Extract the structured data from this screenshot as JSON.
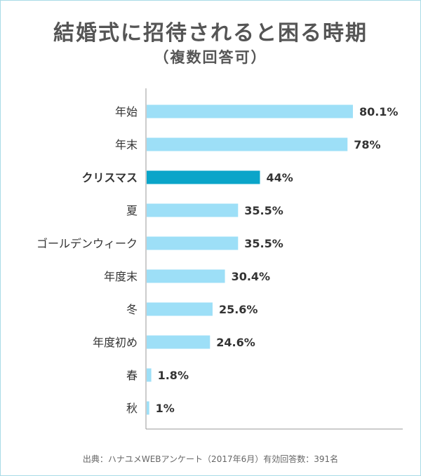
{
  "title": "結婚式に招待されると困る時期",
  "subtitle": "（複数回答可）",
  "footer": "出典：ハナユメWEBアンケート（2017年6月）有効回答数：391名",
  "colors": {
    "bar": "#9ddff7",
    "highlight": "#0aa5c9",
    "axis": "#999999",
    "text": "#333333",
    "border": "#a9dbe6"
  },
  "chart_data": {
    "type": "bar",
    "orientation": "horizontal",
    "categories": [
      "年始",
      "年末",
      "クリスマス",
      "夏",
      "ゴールデンウィーク",
      "年度末",
      "冬",
      "年度初め",
      "春",
      "秋"
    ],
    "values": [
      80.1,
      78,
      44,
      35.5,
      35.5,
      30.4,
      25.6,
      24.6,
      1.8,
      1
    ],
    "value_labels": [
      "80.1%",
      "78%",
      "44%",
      "35.5%",
      "35.5%",
      "30.4%",
      "25.6%",
      "24.6%",
      "1.8%",
      "1%"
    ],
    "highlight": "クリスマス",
    "xlim": [
      0,
      100
    ],
    "grid": false,
    "title": "結婚式に招待されると困る時期",
    "subtitle": "（複数回答可）"
  }
}
